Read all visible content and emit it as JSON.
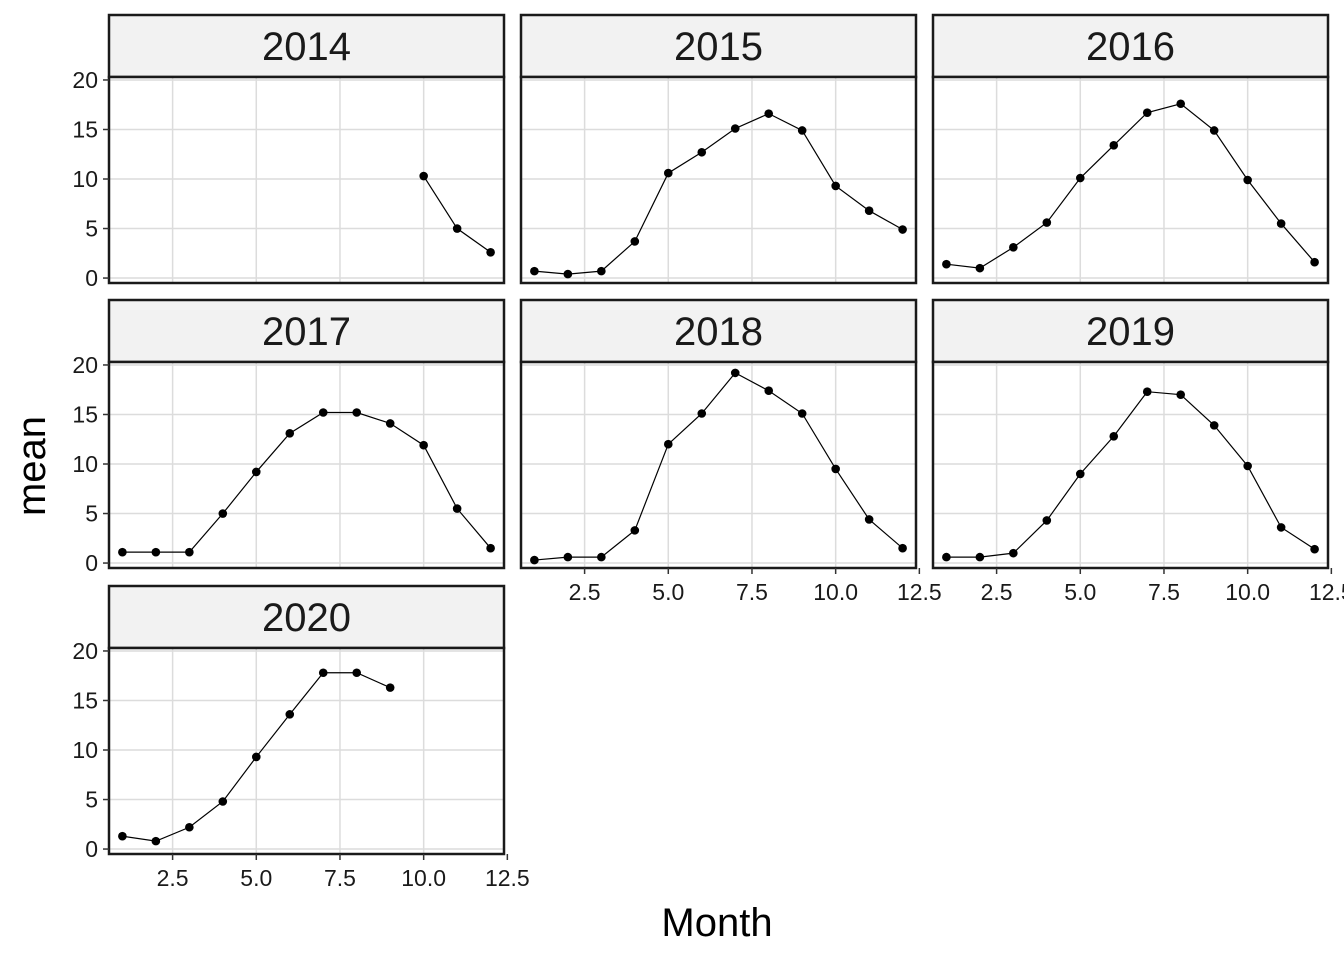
{
  "chart_data": {
    "type": "line",
    "layout": "facet_wrap",
    "xlabel": "Month",
    "ylabel": "mean",
    "xlim": [
      0.6,
      12.4
    ],
    "ylim": [
      -0.5,
      20.3
    ],
    "x_ticks": [
      2.5,
      5.0,
      7.5,
      10.0,
      12.5
    ],
    "x_tick_labels": [
      "2.5",
      "5.0",
      "7.5",
      "10.0",
      "12.5"
    ],
    "y_ticks": [
      0,
      5,
      10,
      15,
      20
    ],
    "y_tick_labels": [
      "0",
      "5",
      "10",
      "15",
      "20"
    ],
    "grid": true,
    "colors": {
      "line": "#000000",
      "point": "#000000",
      "grid": "#dcdcdc",
      "strip_fill": "#f2f2f2",
      "panel_border": "#1a1a1a"
    },
    "facets": [
      {
        "label": "2014",
        "x": [
          10,
          11,
          12
        ],
        "y": [
          10.3,
          5.0,
          2.6
        ]
      },
      {
        "label": "2015",
        "x": [
          1,
          2,
          3,
          4,
          5,
          6,
          7,
          8,
          9,
          10,
          11,
          12
        ],
        "y": [
          0.7,
          0.4,
          0.7,
          3.7,
          10.6,
          12.7,
          15.1,
          16.6,
          14.9,
          9.3,
          6.8,
          4.9
        ]
      },
      {
        "label": "2016",
        "x": [
          1,
          2,
          3,
          4,
          5,
          6,
          7,
          8,
          9,
          10,
          11,
          12
        ],
        "y": [
          1.4,
          1.0,
          3.1,
          5.6,
          10.1,
          13.4,
          16.7,
          17.6,
          14.9,
          9.9,
          5.5,
          1.6
        ]
      },
      {
        "label": "2017",
        "x": [
          1,
          2,
          3,
          4,
          5,
          6,
          7,
          8,
          9,
          10,
          11,
          12
        ],
        "y": [
          1.1,
          1.1,
          1.1,
          5.0,
          9.2,
          13.1,
          15.2,
          15.2,
          14.1,
          11.9,
          5.5,
          1.5
        ]
      },
      {
        "label": "2018",
        "x": [
          1,
          2,
          3,
          4,
          5,
          6,
          7,
          8,
          9,
          10,
          11,
          12
        ],
        "y": [
          0.3,
          0.6,
          0.6,
          3.3,
          12.0,
          15.1,
          19.2,
          17.4,
          15.1,
          9.5,
          4.4,
          1.5
        ]
      },
      {
        "label": "2019",
        "x": [
          1,
          2,
          3,
          4,
          5,
          6,
          7,
          8,
          9,
          10,
          11,
          12
        ],
        "y": [
          0.6,
          0.6,
          1.0,
          4.3,
          9.0,
          12.8,
          17.3,
          17.0,
          13.9,
          9.8,
          3.6,
          1.4
        ]
      },
      {
        "label": "2020",
        "x": [
          1,
          2,
          3,
          4,
          5,
          6,
          7,
          8,
          9
        ],
        "y": [
          1.3,
          0.8,
          2.2,
          4.8,
          9.3,
          13.6,
          17.8,
          17.8,
          16.3
        ]
      }
    ]
  }
}
